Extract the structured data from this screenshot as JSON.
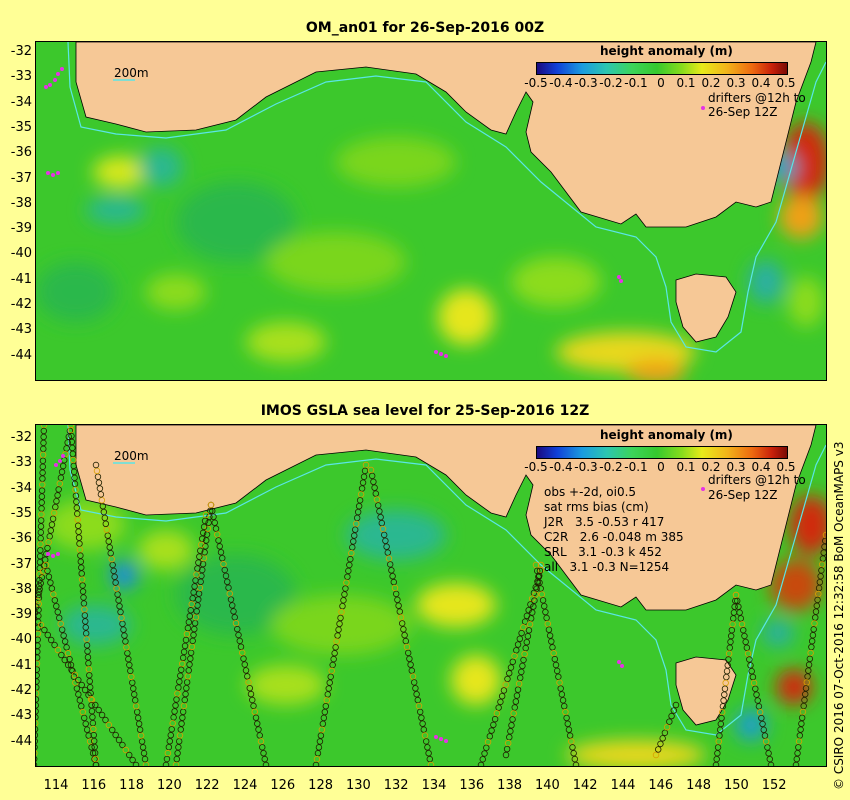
{
  "top": {
    "title": "OM_an01 for 26-Sep-2016 00Z",
    "scale_label": "200m",
    "drifters_line1": "drifters @12h to",
    "drifters_line2": "26-Sep 12Z"
  },
  "bottom": {
    "title": "IMOS GSLA sea level  for 25-Sep-2016 12Z",
    "scale_label": "200m",
    "drifters_line1": "drifters @12h to",
    "drifters_line2": "26-Sep 12Z",
    "stats": [
      "obs +-2d, oi0.5",
      "sat rms bias (cm)",
      "J2R   3.5 -0.53 r 417",
      "C2R   2.6 -0.048 m 385",
      "SRL   3.1 -0.3 k 452",
      "all   3.1 -0.3 N=1254"
    ]
  },
  "colorbar": {
    "title": "height anomaly (m)",
    "ticks": [
      "-0.5",
      "-0.4",
      "-0.3",
      "-0.2",
      "-0.1",
      "0",
      "0.1",
      "0.2",
      "0.3",
      "0.4",
      "0.5"
    ]
  },
  "axes": {
    "lat_labels": [
      "-32",
      "-33",
      "-34",
      "-35",
      "-36",
      "-37",
      "-38",
      "-39",
      "-40",
      "-41",
      "-42",
      "-43",
      "-44"
    ],
    "lon_labels": [
      "114",
      "116",
      "118",
      "120",
      "122",
      "124",
      "126",
      "128",
      "130",
      "132",
      "134",
      "136",
      "138",
      "140",
      "142",
      "144",
      "146",
      "148",
      "150",
      "152"
    ]
  },
  "copyright": "© CSIRO 2016  07-Oct-2016 12:32:58 BoM OceanMAPS v3",
  "colors": {
    "background": "#ffff96",
    "land": "#f6c896",
    "ocean_base": "#3cc82c",
    "shelf_contour": "#5ae6e6",
    "drifters": "#e632e6"
  }
}
